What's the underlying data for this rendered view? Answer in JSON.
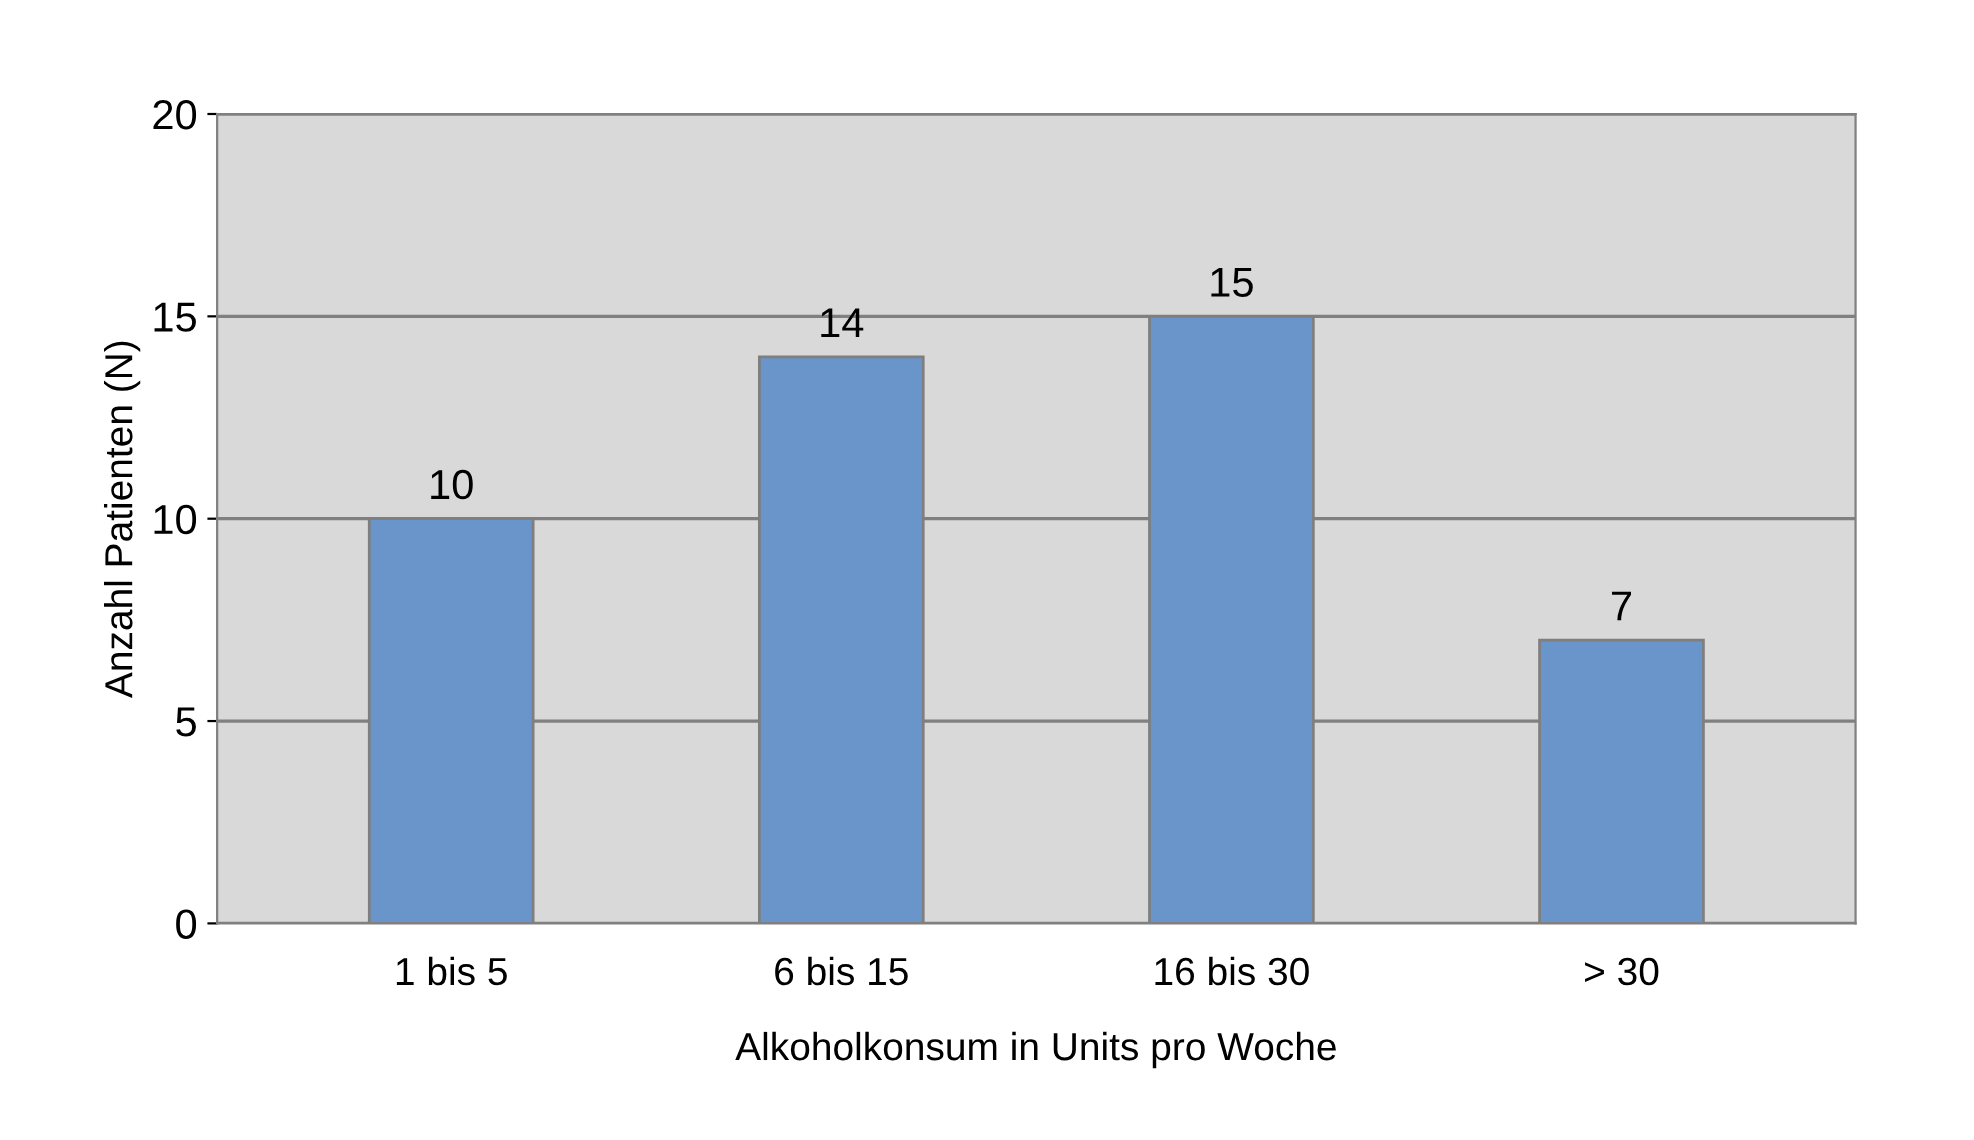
{
  "chart_data": {
    "type": "bar",
    "xlabel": "Alkoholkonsum in Units pro Woche",
    "ylabel": "Anzahl Patienten (N)",
    "categories": [
      "1 bis 5",
      "6 bis 15",
      "16 bis 30",
      "> 30"
    ],
    "values": [
      10,
      14,
      15,
      7
    ],
    "color": "#6a95cb",
    "ylim": [
      0,
      20
    ],
    "yticks": [
      0,
      5,
      10,
      15,
      20
    ],
    "grid": "y",
    "data_labels": true
  }
}
